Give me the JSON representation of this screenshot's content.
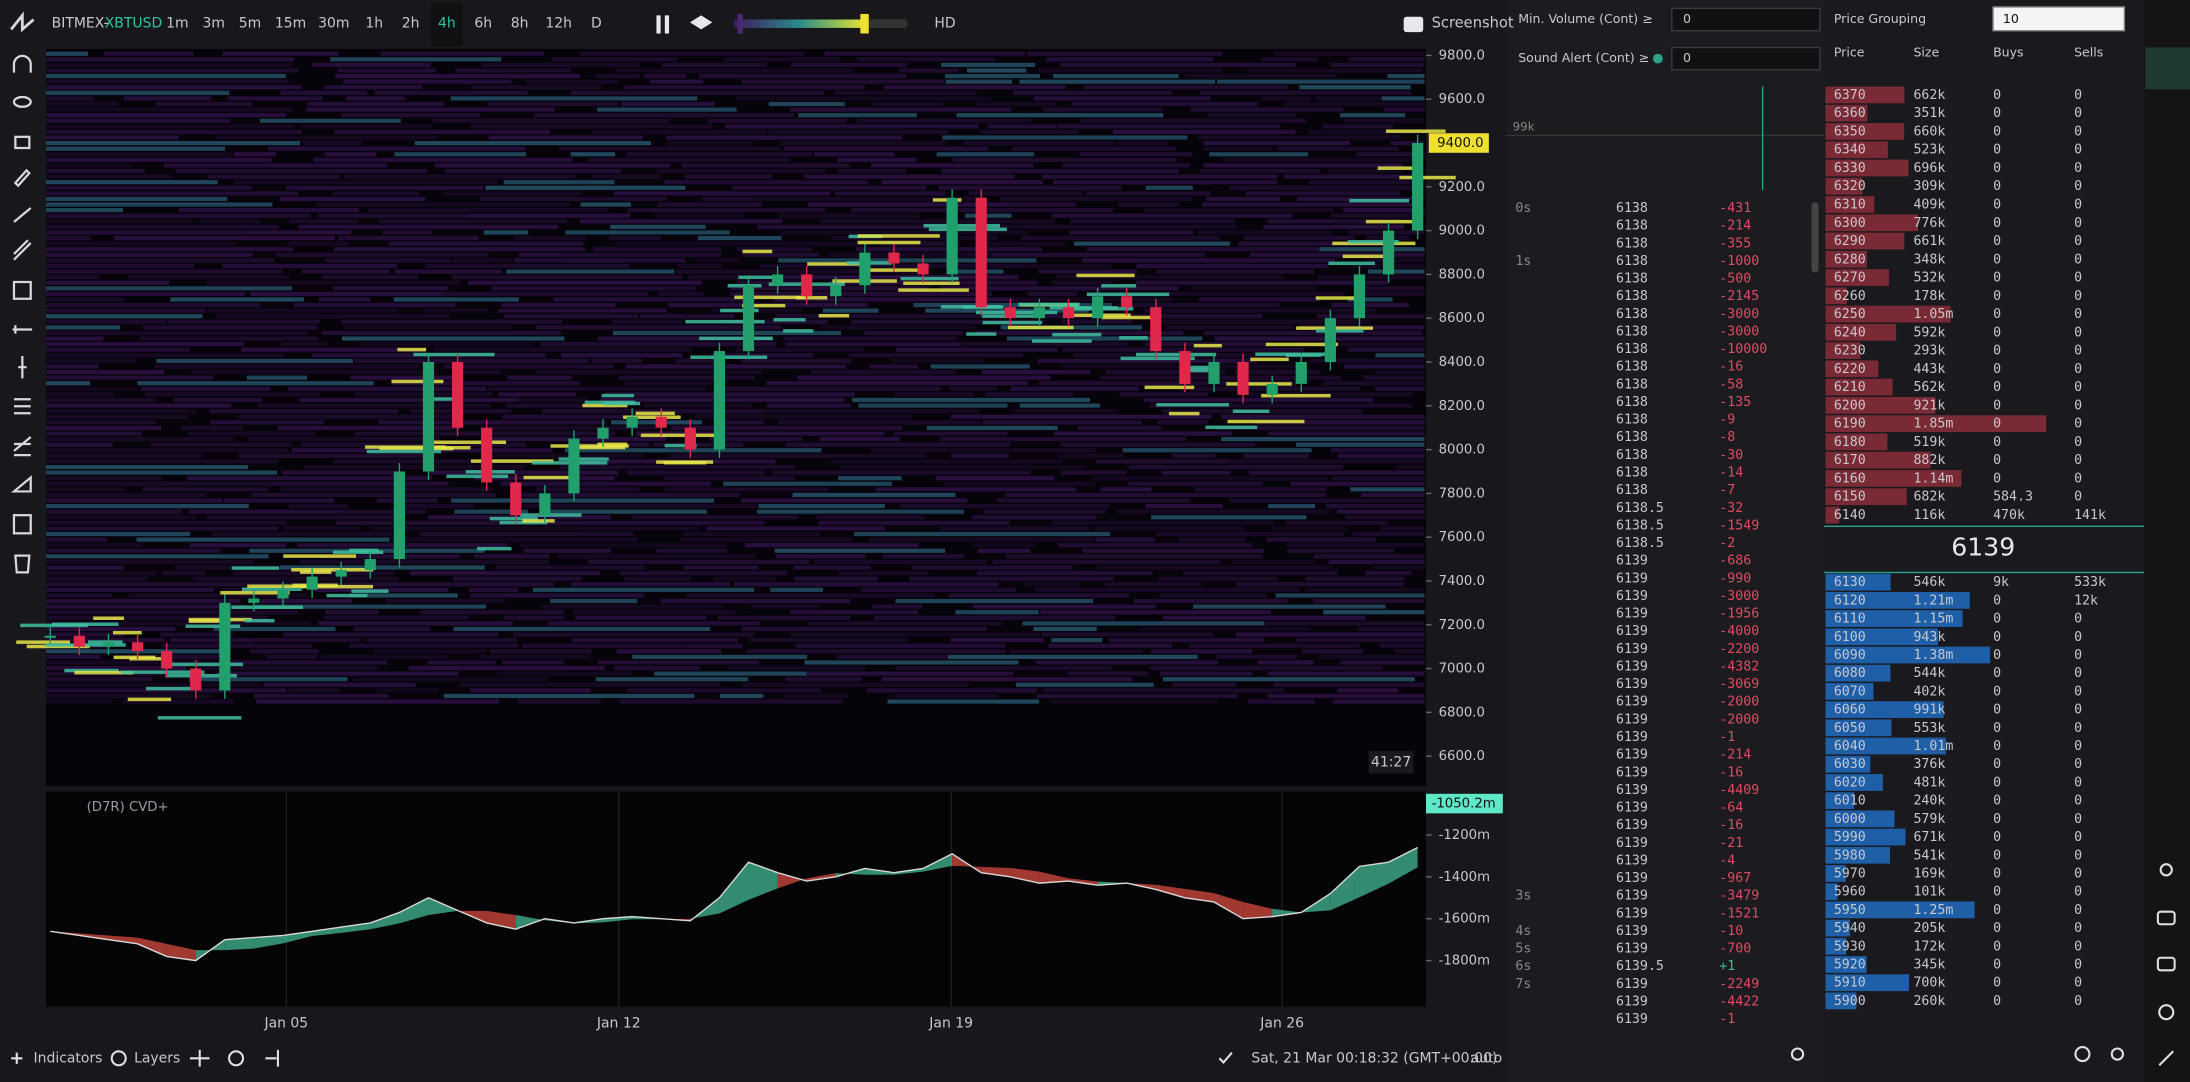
{
  "top_bar": {
    "exchange": "BITMEX-",
    "symbol": "XBTUSD",
    "timeframes": [
      "1m",
      "3m",
      "5m",
      "15m",
      "30m",
      "1h",
      "2h",
      "4h",
      "6h",
      "8h",
      "12h",
      "D"
    ],
    "active_timeframe": "4h",
    "hd": "HD",
    "screenshot": "Screenshot"
  },
  "price_chart": {
    "type": "candlestick",
    "ylim": [
      6470,
      9830
    ],
    "yticks": [
      {
        "value": 9800,
        "label": "9800.0"
      },
      {
        "value": 9600,
        "label": "9600.0"
      },
      {
        "value": 9200,
        "label": "9200.0"
      },
      {
        "value": 9000,
        "label": "9000.0"
      },
      {
        "value": 8800,
        "label": "8800.0"
      },
      {
        "value": 8600,
        "label": "8600.0"
      },
      {
        "value": 8400,
        "label": "8400.0"
      },
      {
        "value": 8200,
        "label": "8200.0"
      },
      {
        "value": 8000,
        "label": "8000.0"
      },
      {
        "value": 7800,
        "label": "7800.0"
      },
      {
        "value": 7600,
        "label": "7600.0"
      },
      {
        "value": 7400,
        "label": "7400.0"
      },
      {
        "value": 7200,
        "label": "7200.0"
      },
      {
        "value": 7000,
        "label": "7000.0"
      },
      {
        "value": 6800,
        "label": "6800.0"
      },
      {
        "value": 6600,
        "label": "6600.0"
      }
    ],
    "last_price": {
      "value": 9400,
      "label": "9400.0"
    },
    "countdown": "41:27",
    "up_color": "#22a06b",
    "down_color": "#e0294a",
    "closes": [
      7150,
      7100,
      7120,
      7080,
      7000,
      6900,
      7300,
      7320,
      7360,
      7420,
      7450,
      7500,
      7900,
      8400,
      8100,
      7850,
      7700,
      7800,
      8050,
      8100,
      8150,
      8100,
      8000,
      8450,
      8750,
      8800,
      8700,
      8750,
      8900,
      8850,
      8800,
      9150,
      8650,
      8600,
      8650,
      8600,
      8700,
      8650,
      8450,
      8300,
      8400,
      8250,
      8300,
      8400,
      8600,
      8800,
      9000,
      9400
    ],
    "x_labels": [
      "Jan 05",
      "Jan 12",
      "Jan 19",
      "Jan 26"
    ]
  },
  "cvd": {
    "type": "area",
    "label": "(D7R) CVD+",
    "ylim": [
      -2013,
      -993
    ],
    "yticks": [
      {
        "value": -1200,
        "label": "-1200m"
      },
      {
        "value": -1400,
        "label": "-1400m"
      },
      {
        "value": -1600,
        "label": "-1600m"
      },
      {
        "value": -1800,
        "label": "-1800m"
      }
    ],
    "last_value": {
      "value": -1050.2,
      "label": "-1050.2m"
    },
    "up_color": "#3fae8c",
    "down_color": "#c8463c",
    "values": [
      -1660,
      -1680,
      -1700,
      -1720,
      -1780,
      -1800,
      -1700,
      -1690,
      -1680,
      -1660,
      -1640,
      -1620,
      -1570,
      -1500,
      -1560,
      -1620,
      -1650,
      -1600,
      -1620,
      -1600,
      -1590,
      -1600,
      -1610,
      -1500,
      -1330,
      -1380,
      -1420,
      -1400,
      -1360,
      -1380,
      -1360,
      -1290,
      -1380,
      -1400,
      -1430,
      -1420,
      -1440,
      -1430,
      -1460,
      -1500,
      -1520,
      -1600,
      -1590,
      -1570,
      -1480,
      -1350,
      -1330,
      -1260
    ]
  },
  "controls": {
    "min_volume_label": "Min. Volume (Cont) ≥",
    "min_volume": "0",
    "sound_alert_label": "Sound Alert (Cont) ≥",
    "sound_alert": "0",
    "price_grouping_label": "Price Grouping",
    "price_grouping": "10"
  },
  "trades": {
    "volume_label": "99k",
    "rows": [
      {
        "time": "0s",
        "price": "6138",
        "size": "-431"
      },
      {
        "price": "6138",
        "size": "-214"
      },
      {
        "price": "6138",
        "size": "-355"
      },
      {
        "time": "1s",
        "price": "6138",
        "size": "-1000"
      },
      {
        "price": "6138",
        "size": "-500"
      },
      {
        "price": "6138",
        "size": "-2145"
      },
      {
        "price": "6138",
        "size": "-3000"
      },
      {
        "price": "6138",
        "size": "-3000"
      },
      {
        "price": "6138",
        "size": "-10000"
      },
      {
        "price": "6138",
        "size": "-16"
      },
      {
        "price": "6138",
        "size": "-58"
      },
      {
        "price": "6138",
        "size": "-135"
      },
      {
        "price": "6138",
        "size": "-9"
      },
      {
        "price": "6138",
        "size": "-8"
      },
      {
        "price": "6138",
        "size": "-30"
      },
      {
        "price": "6138",
        "size": "-14"
      },
      {
        "price": "6138",
        "size": "-7"
      },
      {
        "price": "6138.5",
        "size": "-32"
      },
      {
        "price": "6138.5",
        "size": "-1549"
      },
      {
        "price": "6138.5",
        "size": "-2"
      },
      {
        "price": "6139",
        "size": "-686"
      },
      {
        "price": "6139",
        "size": "-990"
      },
      {
        "price": "6139",
        "size": "-3000"
      },
      {
        "price": "6139",
        "size": "-1956"
      },
      {
        "price": "6139",
        "size": "-4000"
      },
      {
        "price": "6139",
        "size": "-2200"
      },
      {
        "price": "6139",
        "size": "-4382"
      },
      {
        "price": "6139",
        "size": "-3069"
      },
      {
        "price": "6139",
        "size": "-2000"
      },
      {
        "price": "6139",
        "size": "-2000"
      },
      {
        "price": "6139",
        "size": "-1"
      },
      {
        "price": "6139",
        "size": "-214"
      },
      {
        "price": "6139",
        "size": "-16"
      },
      {
        "price": "6139",
        "size": "-4409"
      },
      {
        "price": "6139",
        "size": "-64"
      },
      {
        "price": "6139",
        "size": "-16"
      },
      {
        "price": "6139",
        "size": "-21"
      },
      {
        "price": "6139",
        "size": "-4"
      },
      {
        "price": "6139",
        "size": "-967"
      },
      {
        "time": "3s",
        "price": "6139",
        "size": "-3479"
      },
      {
        "price": "6139",
        "size": "-1521"
      },
      {
        "time": "4s",
        "price": "6139",
        "size": "-10"
      },
      {
        "time": "5s",
        "price": "6139",
        "size": "-700"
      },
      {
        "time": "6s",
        "price": "6139.5",
        "size": "+1"
      },
      {
        "time": "7s",
        "price": "6139",
        "size": "-2249"
      },
      {
        "price": "6139",
        "size": "-4422"
      },
      {
        "price": "6139",
        "size": "-1"
      }
    ]
  },
  "order_book": {
    "headers": [
      "Price",
      "Size",
      "Buys",
      "Sells"
    ],
    "ask_color": "#7a2a34",
    "bid_color": "#1f5fa8",
    "mid": "6139",
    "asks": [
      {
        "price": "6370",
        "size": {
          "value": 662000,
          "label": "662k"
        },
        "buys": "0",
        "sells": "0"
      },
      {
        "price": "6360",
        "size": {
          "value": 351000,
          "label": "351k"
        },
        "buys": "0",
        "sells": "0"
      },
      {
        "price": "6350",
        "size": {
          "value": 660000,
          "label": "660k"
        },
        "buys": "0",
        "sells": "0"
      },
      {
        "price": "6340",
        "size": {
          "value": 523000,
          "label": "523k"
        },
        "buys": "0",
        "sells": "0"
      },
      {
        "price": "6330",
        "size": {
          "value": 696000,
          "label": "696k"
        },
        "buys": "0",
        "sells": "0"
      },
      {
        "price": "6320",
        "size": {
          "value": 309000,
          "label": "309k"
        },
        "buys": "0",
        "sells": "0"
      },
      {
        "price": "6310",
        "size": {
          "value": 409000,
          "label": "409k"
        },
        "buys": "0",
        "sells": "0"
      },
      {
        "price": "6300",
        "size": {
          "value": 776000,
          "label": "776k"
        },
        "buys": "0",
        "sells": "0"
      },
      {
        "price": "6290",
        "size": {
          "value": 661000,
          "label": "661k"
        },
        "buys": "0",
        "sells": "0"
      },
      {
        "price": "6280",
        "size": {
          "value": 348000,
          "label": "348k"
        },
        "buys": "0",
        "sells": "0"
      },
      {
        "price": "6270",
        "size": {
          "value": 532000,
          "label": "532k"
        },
        "buys": "0",
        "sells": "0"
      },
      {
        "price": "6260",
        "size": {
          "value": 178000,
          "label": "178k"
        },
        "buys": "0",
        "sells": "0"
      },
      {
        "price": "6250",
        "size": {
          "value": 1050000,
          "label": "1.05m"
        },
        "buys": "0",
        "sells": "0"
      },
      {
        "price": "6240",
        "size": {
          "value": 592000,
          "label": "592k"
        },
        "buys": "0",
        "sells": "0"
      },
      {
        "price": "6230",
        "size": {
          "value": 293000,
          "label": "293k"
        },
        "buys": "0",
        "sells": "0"
      },
      {
        "price": "6220",
        "size": {
          "value": 443000,
          "label": "443k"
        },
        "buys": "0",
        "sells": "0"
      },
      {
        "price": "6210",
        "size": {
          "value": 562000,
          "label": "562k"
        },
        "buys": "0",
        "sells": "0"
      },
      {
        "price": "6200",
        "size": {
          "value": 921000,
          "label": "921k"
        },
        "buys": "0",
        "sells": "0"
      },
      {
        "price": "6190",
        "size": {
          "value": 1850000,
          "label": "1.85m"
        },
        "buys": "0",
        "sells": "0"
      },
      {
        "price": "6180",
        "size": {
          "value": 519000,
          "label": "519k"
        },
        "buys": "0",
        "sells": "0"
      },
      {
        "price": "6170",
        "size": {
          "value": 882000,
          "label": "882k"
        },
        "buys": "0",
        "sells": "0"
      },
      {
        "price": "6160",
        "size": {
          "value": 1140000,
          "label": "1.14m"
        },
        "buys": "0",
        "sells": "0"
      },
      {
        "price": "6150",
        "size": {
          "value": 682000,
          "label": "682k"
        },
        "buys": "584.3",
        "sells": "0"
      },
      {
        "price": "6140",
        "size": {
          "value": 116000,
          "label": "116k"
        },
        "buys": "470k",
        "sells": "141k"
      }
    ],
    "bids": [
      {
        "price": "6130",
        "size": {
          "value": 546000,
          "label": "546k"
        },
        "buys": "9k",
        "sells": "533k"
      },
      {
        "price": "6120",
        "size": {
          "value": 1210000,
          "label": "1.21m"
        },
        "buys": "0",
        "sells": "12k"
      },
      {
        "price": "6110",
        "size": {
          "value": 1150000,
          "label": "1.15m"
        },
        "buys": "0",
        "sells": "0"
      },
      {
        "price": "6100",
        "size": {
          "value": 943000,
          "label": "943k"
        },
        "buys": "0",
        "sells": "0"
      },
      {
        "price": "6090",
        "size": {
          "value": 1380000,
          "label": "1.38m"
        },
        "buys": "0",
        "sells": "0"
      },
      {
        "price": "6080",
        "size": {
          "value": 544000,
          "label": "544k"
        },
        "buys": "0",
        "sells": "0"
      },
      {
        "price": "6070",
        "size": {
          "value": 402000,
          "label": "402k"
        },
        "buys": "0",
        "sells": "0"
      },
      {
        "price": "6060",
        "size": {
          "value": 991000,
          "label": "991k"
        },
        "buys": "0",
        "sells": "0"
      },
      {
        "price": "6050",
        "size": {
          "value": 553000,
          "label": "553k"
        },
        "buys": "0",
        "sells": "0"
      },
      {
        "price": "6040",
        "size": {
          "value": 1010000,
          "label": "1.01m"
        },
        "buys": "0",
        "sells": "0"
      },
      {
        "price": "6030",
        "size": {
          "value": 376000,
          "label": "376k"
        },
        "buys": "0",
        "sells": "0"
      },
      {
        "price": "6020",
        "size": {
          "value": 481000,
          "label": "481k"
        },
        "buys": "0",
        "sells": "0"
      },
      {
        "price": "6010",
        "size": {
          "value": 240000,
          "label": "240k"
        },
        "buys": "0",
        "sells": "0"
      },
      {
        "price": "6000",
        "size": {
          "value": 579000,
          "label": "579k"
        },
        "buys": "0",
        "sells": "0"
      },
      {
        "price": "5990",
        "size": {
          "value": 671000,
          "label": "671k"
        },
        "buys": "0",
        "sells": "0"
      },
      {
        "price": "5980",
        "size": {
          "value": 541000,
          "label": "541k"
        },
        "buys": "0",
        "sells": "0"
      },
      {
        "price": "5970",
        "size": {
          "value": 169000,
          "label": "169k"
        },
        "buys": "0",
        "sells": "0"
      },
      {
        "price": "5960",
        "size": {
          "value": 101000,
          "label": "101k"
        },
        "buys": "0",
        "sells": "0"
      },
      {
        "price": "5950",
        "size": {
          "value": 1250000,
          "label": "1.25m"
        },
        "buys": "0",
        "sells": "0"
      },
      {
        "price": "5940",
        "size": {
          "value": 205000,
          "label": "205k"
        },
        "buys": "0",
        "sells": "0"
      },
      {
        "price": "5930",
        "size": {
          "value": 172000,
          "label": "172k"
        },
        "buys": "0",
        "sells": "0"
      },
      {
        "price": "5920",
        "size": {
          "value": 345000,
          "label": "345k"
        },
        "buys": "0",
        "sells": "0"
      },
      {
        "price": "5910",
        "size": {
          "value": 700000,
          "label": "700k"
        },
        "buys": "0",
        "sells": "0"
      },
      {
        "price": "5900",
        "size": {
          "value": 260000,
          "label": "260k"
        },
        "buys": "0",
        "sells": "0"
      }
    ]
  },
  "bottom_bar": {
    "indicators": "Indicators",
    "layers": "Layers",
    "datetime": "Sat, 21 Mar 00:18:32 (GMT+00:00)",
    "auto": "auto"
  }
}
